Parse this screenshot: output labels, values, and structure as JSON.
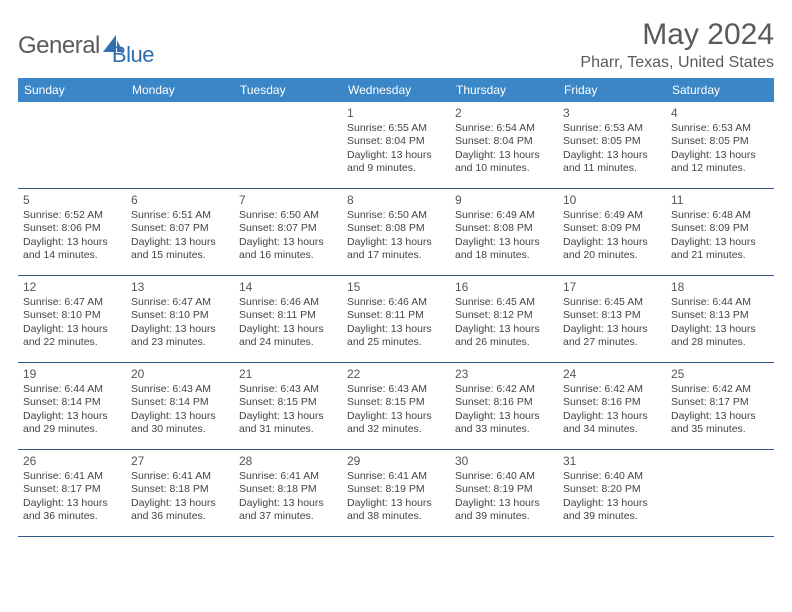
{
  "brand": {
    "word1": "General",
    "word2": "Blue"
  },
  "title": "May 2024",
  "location": "Pharr, Texas, United States",
  "weekdays": [
    "Sunday",
    "Monday",
    "Tuesday",
    "Wednesday",
    "Thursday",
    "Friday",
    "Saturday"
  ],
  "colors": {
    "header_bg": "#3b86c6",
    "header_text": "#ffffff",
    "row_border": "#2f5a85",
    "text": "#444444",
    "title_text": "#5a5a5a",
    "brand_gray": "#5b5b5b",
    "brand_blue": "#2f6fb0",
    "background": "#ffffff"
  },
  "layout": {
    "cols": 7,
    "rows": 5,
    "first_weekday_index": 3
  },
  "days": [
    {
      "n": 1,
      "sunrise": "6:55 AM",
      "sunset": "8:04 PM",
      "daylight": "13 hours and 9 minutes."
    },
    {
      "n": 2,
      "sunrise": "6:54 AM",
      "sunset": "8:04 PM",
      "daylight": "13 hours and 10 minutes."
    },
    {
      "n": 3,
      "sunrise": "6:53 AM",
      "sunset": "8:05 PM",
      "daylight": "13 hours and 11 minutes."
    },
    {
      "n": 4,
      "sunrise": "6:53 AM",
      "sunset": "8:05 PM",
      "daylight": "13 hours and 12 minutes."
    },
    {
      "n": 5,
      "sunrise": "6:52 AM",
      "sunset": "8:06 PM",
      "daylight": "13 hours and 14 minutes."
    },
    {
      "n": 6,
      "sunrise": "6:51 AM",
      "sunset": "8:07 PM",
      "daylight": "13 hours and 15 minutes."
    },
    {
      "n": 7,
      "sunrise": "6:50 AM",
      "sunset": "8:07 PM",
      "daylight": "13 hours and 16 minutes."
    },
    {
      "n": 8,
      "sunrise": "6:50 AM",
      "sunset": "8:08 PM",
      "daylight": "13 hours and 17 minutes."
    },
    {
      "n": 9,
      "sunrise": "6:49 AM",
      "sunset": "8:08 PM",
      "daylight": "13 hours and 18 minutes."
    },
    {
      "n": 10,
      "sunrise": "6:49 AM",
      "sunset": "8:09 PM",
      "daylight": "13 hours and 20 minutes."
    },
    {
      "n": 11,
      "sunrise": "6:48 AM",
      "sunset": "8:09 PM",
      "daylight": "13 hours and 21 minutes."
    },
    {
      "n": 12,
      "sunrise": "6:47 AM",
      "sunset": "8:10 PM",
      "daylight": "13 hours and 22 minutes."
    },
    {
      "n": 13,
      "sunrise": "6:47 AM",
      "sunset": "8:10 PM",
      "daylight": "13 hours and 23 minutes."
    },
    {
      "n": 14,
      "sunrise": "6:46 AM",
      "sunset": "8:11 PM",
      "daylight": "13 hours and 24 minutes."
    },
    {
      "n": 15,
      "sunrise": "6:46 AM",
      "sunset": "8:11 PM",
      "daylight": "13 hours and 25 minutes."
    },
    {
      "n": 16,
      "sunrise": "6:45 AM",
      "sunset": "8:12 PM",
      "daylight": "13 hours and 26 minutes."
    },
    {
      "n": 17,
      "sunrise": "6:45 AM",
      "sunset": "8:13 PM",
      "daylight": "13 hours and 27 minutes."
    },
    {
      "n": 18,
      "sunrise": "6:44 AM",
      "sunset": "8:13 PM",
      "daylight": "13 hours and 28 minutes."
    },
    {
      "n": 19,
      "sunrise": "6:44 AM",
      "sunset": "8:14 PM",
      "daylight": "13 hours and 29 minutes."
    },
    {
      "n": 20,
      "sunrise": "6:43 AM",
      "sunset": "8:14 PM",
      "daylight": "13 hours and 30 minutes."
    },
    {
      "n": 21,
      "sunrise": "6:43 AM",
      "sunset": "8:15 PM",
      "daylight": "13 hours and 31 minutes."
    },
    {
      "n": 22,
      "sunrise": "6:43 AM",
      "sunset": "8:15 PM",
      "daylight": "13 hours and 32 minutes."
    },
    {
      "n": 23,
      "sunrise": "6:42 AM",
      "sunset": "8:16 PM",
      "daylight": "13 hours and 33 minutes."
    },
    {
      "n": 24,
      "sunrise": "6:42 AM",
      "sunset": "8:16 PM",
      "daylight": "13 hours and 34 minutes."
    },
    {
      "n": 25,
      "sunrise": "6:42 AM",
      "sunset": "8:17 PM",
      "daylight": "13 hours and 35 minutes."
    },
    {
      "n": 26,
      "sunrise": "6:41 AM",
      "sunset": "8:17 PM",
      "daylight": "13 hours and 36 minutes."
    },
    {
      "n": 27,
      "sunrise": "6:41 AM",
      "sunset": "8:18 PM",
      "daylight": "13 hours and 36 minutes."
    },
    {
      "n": 28,
      "sunrise": "6:41 AM",
      "sunset": "8:18 PM",
      "daylight": "13 hours and 37 minutes."
    },
    {
      "n": 29,
      "sunrise": "6:41 AM",
      "sunset": "8:19 PM",
      "daylight": "13 hours and 38 minutes."
    },
    {
      "n": 30,
      "sunrise": "6:40 AM",
      "sunset": "8:19 PM",
      "daylight": "13 hours and 39 minutes."
    },
    {
      "n": 31,
      "sunrise": "6:40 AM",
      "sunset": "8:20 PM",
      "daylight": "13 hours and 39 minutes."
    }
  ],
  "labels": {
    "sunrise": "Sunrise:",
    "sunset": "Sunset:",
    "daylight": "Daylight:"
  }
}
